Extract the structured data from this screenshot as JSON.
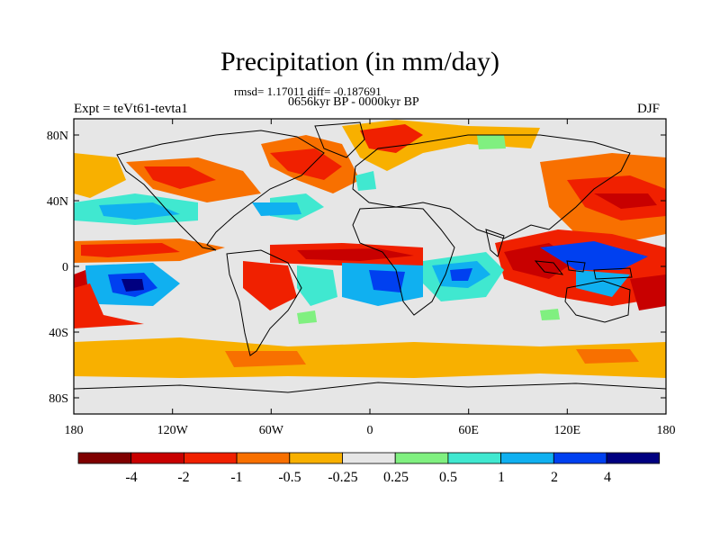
{
  "figure": {
    "title": "Precipitation (in mm/day)",
    "stats_line": "rmsd= 1.17011 diff= -0.187691",
    "period": "0656kyr BP - 0000kyr BP",
    "experiment": "Expt = teVt61-tevta1",
    "season": "DJF"
  },
  "axes": {
    "lat_ticks": [
      "80N",
      "40N",
      "0",
      "40S",
      "80S"
    ],
    "lon_ticks": [
      "180",
      "120W",
      "60W",
      "0",
      "60E",
      "120E",
      "180"
    ]
  },
  "colorbar": {
    "labels": [
      "-4",
      "-2",
      "-1",
      "-0.5",
      "-0.25",
      "0.25",
      "0.5",
      "1",
      "2",
      "4"
    ],
    "colors": [
      "#7f0000",
      "#c80000",
      "#f02000",
      "#f87000",
      "#f8b000",
      "#e6e6e6",
      "#80f080",
      "#40e8d0",
      "#10b0f0",
      "#0040f0",
      "#000080"
    ]
  }
}
